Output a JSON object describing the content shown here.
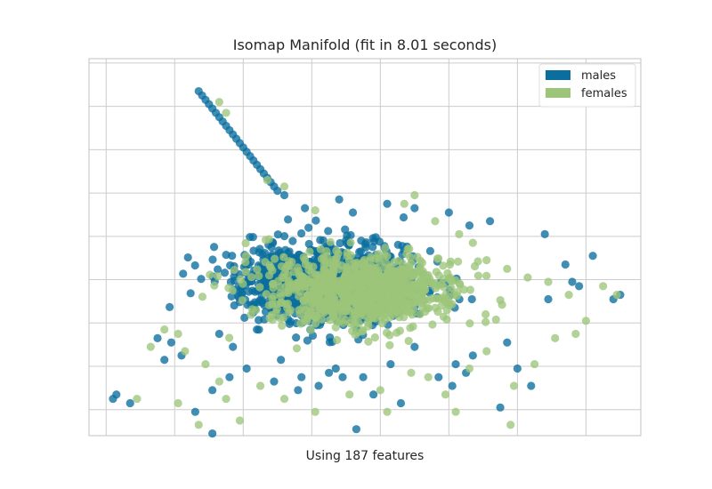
{
  "chart_data": {
    "type": "scatter",
    "title": "Isomap Manifold (fit in 8.01 seconds)",
    "xlabel": "Using 187 features",
    "ylabel": "",
    "xlim": [
      -2.25,
      5.8
    ],
    "ylim": [
      -2.6,
      6.1
    ],
    "x_ticks_visible": false,
    "y_ticks_visible": false,
    "grid": true,
    "legend_position": "top-right",
    "series": [
      {
        "name": "males",
        "color": "#0a6e9e",
        "values": [
          [
            -0.6,
            5.25
          ],
          [
            -0.55,
            5.15
          ],
          [
            -0.5,
            5.05
          ],
          [
            -0.45,
            4.95
          ],
          [
            -0.4,
            4.85
          ],
          [
            -0.35,
            4.75
          ],
          [
            -0.3,
            4.65
          ],
          [
            -0.25,
            4.55
          ],
          [
            -0.2,
            4.45
          ],
          [
            -0.15,
            4.35
          ],
          [
            -0.1,
            4.25
          ],
          [
            -0.05,
            4.15
          ],
          [
            0.0,
            4.05
          ],
          [
            0.05,
            3.95
          ],
          [
            0.1,
            3.85
          ],
          [
            0.15,
            3.75
          ],
          [
            0.2,
            3.65
          ],
          [
            0.25,
            3.55
          ],
          [
            0.3,
            3.45
          ],
          [
            0.35,
            3.35
          ],
          [
            0.4,
            3.25
          ],
          [
            0.45,
            3.15
          ],
          [
            0.5,
            3.05
          ],
          [
            -0.65,
            5.35
          ],
          [
            0.6,
            2.95
          ],
          [
            0.9,
            2.65
          ],
          [
            1.4,
            2.85
          ],
          [
            1.6,
            2.55
          ],
          [
            2.1,
            2.75
          ],
          [
            2.5,
            2.65
          ],
          [
            3.0,
            2.55
          ],
          [
            3.3,
            2.25
          ],
          [
            3.6,
            2.35
          ],
          [
            4.4,
            2.05
          ],
          [
            4.7,
            1.35
          ],
          [
            5.1,
            1.55
          ],
          [
            5.4,
            0.55
          ],
          [
            5.5,
            0.65
          ],
          [
            4.9,
            0.85
          ],
          [
            4.45,
            0.55
          ],
          [
            4.8,
            0.95
          ],
          [
            -1.15,
            -0.85
          ],
          [
            -0.9,
            -0.75
          ],
          [
            -1.05,
            -0.45
          ],
          [
            -1.25,
            -0.35
          ],
          [
            -0.35,
            -0.25
          ],
          [
            -0.15,
            -0.55
          ],
          [
            0.2,
            -0.15
          ],
          [
            0.55,
            -0.85
          ],
          [
            0.85,
            -1.25
          ],
          [
            1.25,
            -1.15
          ],
          [
            1.35,
            -1.05
          ],
          [
            1.75,
            -1.25
          ],
          [
            2.15,
            -0.95
          ],
          [
            2.5,
            -0.55
          ],
          [
            3.1,
            -0.95
          ],
          [
            3.35,
            -0.75
          ],
          [
            3.85,
            -0.45
          ],
          [
            4.0,
            -1.05
          ],
          [
            4.2,
            -1.45
          ],
          [
            3.25,
            -1.15
          ],
          [
            -0.45,
            -1.55
          ],
          [
            -0.2,
            -1.25
          ],
          [
            0.05,
            -1.05
          ],
          [
            0.45,
            -1.35
          ],
          [
            0.8,
            -1.55
          ],
          [
            1.1,
            -1.45
          ],
          [
            1.45,
            -1.25
          ],
          [
            1.9,
            -1.65
          ],
          [
            2.3,
            -1.85
          ],
          [
            2.85,
            -1.25
          ],
          [
            3.05,
            -1.45
          ],
          [
            -1.65,
            -1.85
          ],
          [
            -1.85,
            -1.65
          ],
          [
            -1.9,
            -1.75
          ],
          [
            -0.7,
            -2.05
          ],
          [
            -0.45,
            -2.55
          ],
          [
            1.65,
            -2.45
          ],
          [
            3.75,
            -1.95
          ]
        ],
        "cluster": {
          "cx": 1.2,
          "cy": 0.95,
          "sx": 1.15,
          "sy": 0.8,
          "count": 1100,
          "seed": 7
        }
      },
      {
        "name": "females",
        "color": "#9cc57a",
        "values": [
          [
            -0.35,
            5.1
          ],
          [
            -0.25,
            4.85
          ],
          [
            0.35,
            3.3
          ],
          [
            0.6,
            3.15
          ],
          [
            1.05,
            2.6
          ],
          [
            2.5,
            2.95
          ],
          [
            2.35,
            2.75
          ],
          [
            2.8,
            2.35
          ],
          [
            3.15,
            2.05
          ],
          [
            3.35,
            1.85
          ],
          [
            3.55,
            1.45
          ],
          [
            3.85,
            1.25
          ],
          [
            4.15,
            1.05
          ],
          [
            4.45,
            0.95
          ],
          [
            4.75,
            0.65
          ],
          [
            5.25,
            0.85
          ],
          [
            5.45,
            0.65
          ],
          [
            -1.35,
            -0.55
          ],
          [
            -1.15,
            -0.15
          ],
          [
            -0.95,
            -0.25
          ],
          [
            -0.85,
            -0.65
          ],
          [
            -0.55,
            -0.95
          ],
          [
            -0.35,
            -1.35
          ],
          [
            -0.25,
            -1.75
          ],
          [
            0.25,
            -1.45
          ],
          [
            0.6,
            -1.75
          ],
          [
            1.05,
            -2.05
          ],
          [
            1.55,
            -1.65
          ],
          [
            2.0,
            -1.55
          ],
          [
            2.45,
            -1.15
          ],
          [
            2.7,
            -1.25
          ],
          [
            2.95,
            -1.65
          ],
          [
            3.3,
            -1.05
          ],
          [
            3.55,
            -0.65
          ],
          [
            3.95,
            -1.45
          ],
          [
            4.25,
            -0.95
          ],
          [
            4.55,
            -0.35
          ],
          [
            4.85,
            -0.25
          ],
          [
            5.0,
            0.05
          ],
          [
            -1.55,
            -1.75
          ],
          [
            -0.95,
            -1.85
          ],
          [
            -0.65,
            -2.35
          ],
          [
            -0.05,
            -2.25
          ],
          [
            2.1,
            -2.05
          ],
          [
            3.1,
            -2.05
          ],
          [
            3.9,
            -2.35
          ]
        ],
        "cluster": {
          "cx": 1.7,
          "cy": 0.75,
          "sx": 1.3,
          "sy": 0.75,
          "count": 900,
          "seed": 13
        }
      }
    ]
  }
}
